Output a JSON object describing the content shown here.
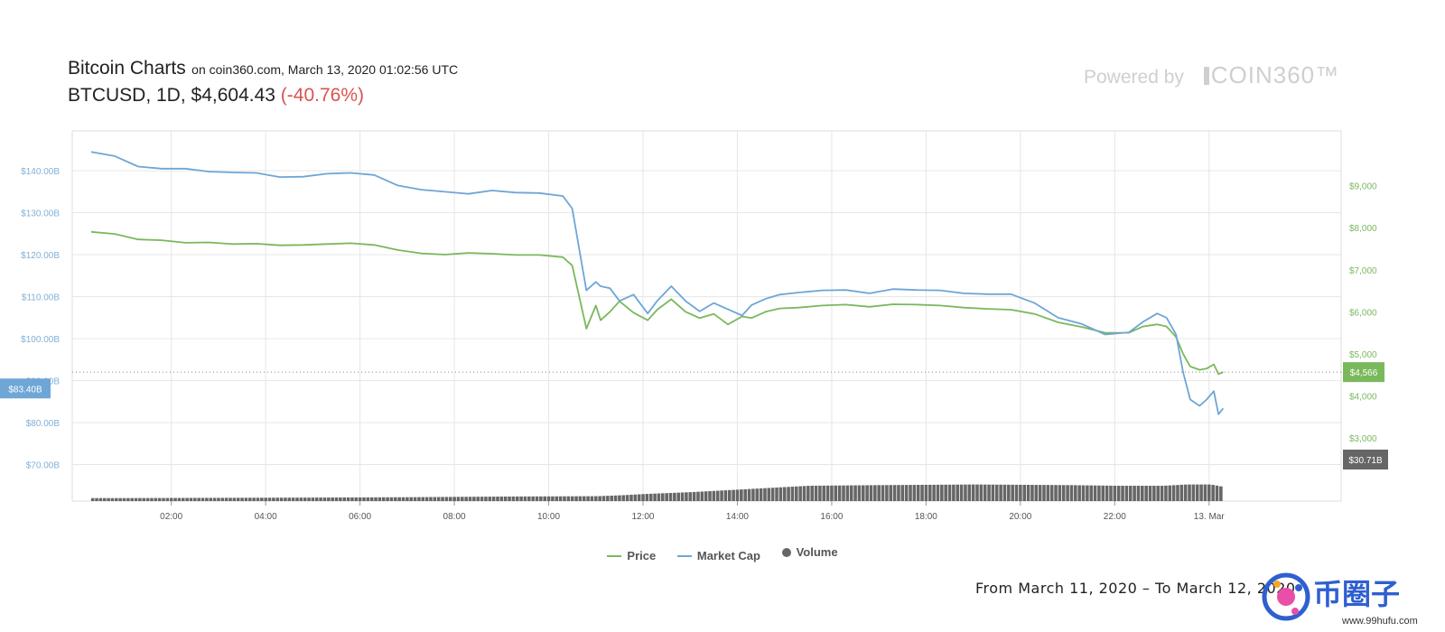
{
  "header": {
    "title": "Bitcoin Charts",
    "subtitle": "on coin360.com, March 13, 2020 01:02:56 UTC",
    "pair_info": "BTCUSD, 1D, $4,604.43",
    "change": "(-40.76%)"
  },
  "branding": {
    "powered_by": "Powered by",
    "brand_name": "COIN360™"
  },
  "legend": {
    "price": "Price",
    "market_cap": "Market Cap",
    "volume": "Volume"
  },
  "footnote": "From March 11, 2020 – To March 12, 2020",
  "watermark": {
    "name": "币圈子",
    "url": "www.99hufu.com"
  },
  "colors": {
    "price": "#7ab85c",
    "market_cap": "#6ea6d6",
    "volume": "#666666",
    "change": "#d9534f"
  },
  "chart_data": {
    "type": "line",
    "x_tick_labels": [
      "02:00",
      "04:00",
      "06:00",
      "08:00",
      "10:00",
      "12:00",
      "14:00",
      "16:00",
      "18:00",
      "20:00",
      "22:00",
      "13. Mar"
    ],
    "left_axis": {
      "ticks": [
        "$140.00B",
        "$130.00B",
        "$120.00B",
        "$110.00B",
        "$100.00B",
        "$90.00B",
        "$80.00B",
        "$70.00B"
      ],
      "range": [
        61.3,
        149.5
      ],
      "current_label": "$83.40B"
    },
    "right_axis": {
      "ticks": [
        "$9,000",
        "$8,000",
        "$7,000",
        "$6,000",
        "$5,000",
        "$4,000",
        "$3,000"
      ],
      "range": [
        1500,
        10300
      ],
      "current_label": "$4,566",
      "volume_label": "$30.71B"
    },
    "series": [
      {
        "name": "Price",
        "axis": "right",
        "x_hours": [
          0,
          0.5,
          1,
          1.5,
          2,
          2.5,
          3,
          3.5,
          4,
          4.5,
          5,
          5.5,
          6,
          6.5,
          7,
          7.5,
          8,
          8.5,
          9,
          9.5,
          10,
          10.2,
          10.5,
          10.7,
          10.8,
          11,
          11.2,
          11.5,
          11.8,
          12,
          12.3,
          12.6,
          12.9,
          13.2,
          13.5,
          13.8,
          14,
          14.3,
          14.6,
          15,
          15.5,
          16,
          16.5,
          17,
          17.5,
          18,
          18.5,
          19,
          19.5,
          20,
          20.5,
          21,
          21.5,
          22,
          22.3,
          22.6,
          22.8,
          23,
          23.15,
          23.3,
          23.5,
          23.65,
          23.8,
          23.9,
          24
        ],
        "values": [
          7900,
          7850,
          7720,
          7700,
          7640,
          7650,
          7610,
          7620,
          7580,
          7590,
          7610,
          7630,
          7590,
          7470,
          7390,
          7360,
          7400,
          7380,
          7350,
          7350,
          7300,
          7100,
          5600,
          6150,
          5800,
          6000,
          6250,
          5980,
          5800,
          6050,
          6300,
          6000,
          5850,
          5950,
          5700,
          5890,
          5850,
          6000,
          6080,
          6100,
          6150,
          6170,
          6120,
          6180,
          6170,
          6150,
          6100,
          6070,
          6050,
          5950,
          5750,
          5640,
          5500,
          5500,
          5650,
          5700,
          5650,
          5400,
          5000,
          4700,
          4620,
          4650,
          4750,
          4520,
          4566
        ]
      },
      {
        "name": "Market Cap",
        "axis": "left",
        "x_hours": [
          0,
          0.5,
          1,
          1.5,
          2,
          2.5,
          3,
          3.5,
          4,
          4.5,
          5,
          5.5,
          6,
          6.5,
          7,
          7.5,
          8,
          8.5,
          9,
          9.5,
          10,
          10.2,
          10.5,
          10.7,
          10.8,
          11,
          11.2,
          11.5,
          11.8,
          12,
          12.3,
          12.6,
          12.9,
          13.2,
          13.5,
          13.8,
          14,
          14.3,
          14.6,
          15,
          15.5,
          16,
          16.5,
          17,
          17.5,
          18,
          18.5,
          19,
          19.5,
          20,
          20.5,
          21,
          21.5,
          22,
          22.3,
          22.6,
          22.8,
          23,
          23.15,
          23.3,
          23.5,
          23.65,
          23.8,
          23.9,
          24
        ],
        "values": [
          144.5,
          143.5,
          141.0,
          140.5,
          140.5,
          139.8,
          139.6,
          139.5,
          138.5,
          138.6,
          139.3,
          139.5,
          139.0,
          136.5,
          135.5,
          135.0,
          134.5,
          135.3,
          134.8,
          134.7,
          134.0,
          131.0,
          111.5,
          113.5,
          112.5,
          112.0,
          109.0,
          110.5,
          106.0,
          109.0,
          112.5,
          109.0,
          106.5,
          108.5,
          107.0,
          105.5,
          108.0,
          109.5,
          110.5,
          111.0,
          111.5,
          111.6,
          110.8,
          111.8,
          111.6,
          111.5,
          110.8,
          110.6,
          110.6,
          108.5,
          105.0,
          103.5,
          101.0,
          101.5,
          104.0,
          106.0,
          105.0,
          101.0,
          92.0,
          85.5,
          84.0,
          85.5,
          87.5,
          82.0,
          83.4
        ]
      },
      {
        "name": "Volume",
        "axis": "right",
        "x_hours": [
          0,
          2,
          4,
          6,
          8,
          10,
          10.5,
          11,
          12,
          13,
          14,
          14.5,
          16,
          18,
          20,
          21,
          22,
          22.5,
          23,
          23.3,
          23.6,
          24
        ],
        "values": [
          20.8,
          21.0,
          21.2,
          21.5,
          22.0,
          22.3,
          23.0,
          24.0,
          25.5,
          27.5,
          29.5,
          30.5,
          31.0,
          31.5,
          31.0,
          30.5,
          30.5,
          31.5,
          31.5,
          29.5,
          30.0,
          30.71
        ]
      }
    ],
    "volume_unit": "B",
    "grid": true,
    "legend_position": "bottom-center"
  }
}
